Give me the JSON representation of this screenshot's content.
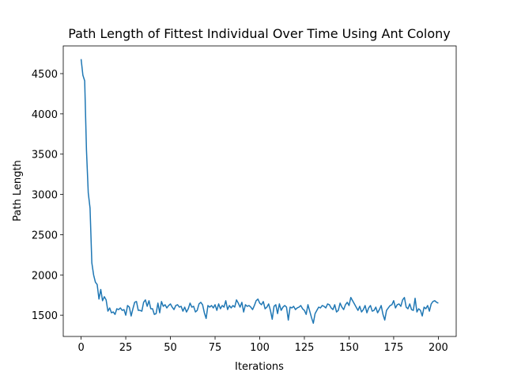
{
  "chart_data": {
    "type": "line",
    "title": "Path Length of Fittest Individual Over Time Using Ant Colony",
    "x_label": "Iterations",
    "y_label": "Path Length",
    "x": [
      0,
      1,
      2,
      3,
      4,
      5,
      6,
      7,
      8,
      9,
      10,
      11,
      12,
      13,
      14,
      15,
      16,
      17,
      18,
      19,
      20,
      21,
      22,
      23,
      24,
      25,
      26,
      27,
      28,
      29,
      30,
      31,
      32,
      33,
      34,
      35,
      36,
      37,
      38,
      39,
      40,
      41,
      42,
      43,
      44,
      45,
      46,
      47,
      48,
      49,
      50,
      51,
      52,
      53,
      54,
      55,
      56,
      57,
      58,
      59,
      60,
      61,
      62,
      63,
      64,
      65,
      66,
      67,
      68,
      69,
      70,
      71,
      72,
      73,
      74,
      75,
      76,
      77,
      78,
      79,
      80,
      81,
      82,
      83,
      84,
      85,
      86,
      87,
      88,
      89,
      90,
      91,
      92,
      93,
      94,
      95,
      96,
      97,
      98,
      99,
      100,
      101,
      102,
      103,
      104,
      105,
      106,
      107,
      108,
      109,
      110,
      111,
      112,
      113,
      114,
      115,
      116,
      117,
      118,
      119,
      120,
      121,
      122,
      123,
      124,
      125,
      126,
      127,
      128,
      129,
      130,
      131,
      132,
      133,
      134,
      135,
      136,
      137,
      138,
      139,
      140,
      141,
      142,
      143,
      144,
      145,
      146,
      147,
      148,
      149,
      150,
      151,
      152,
      153,
      154,
      155,
      156,
      157,
      158,
      159,
      160,
      161,
      162,
      163,
      164,
      165,
      166,
      167,
      168,
      169,
      170,
      171,
      172,
      173,
      174,
      175,
      176,
      177,
      178,
      179,
      180,
      181,
      182,
      183,
      184,
      185,
      186,
      187,
      188,
      189,
      190,
      191,
      192,
      193,
      194,
      195,
      196,
      197,
      198,
      199,
      200
    ],
    "series": [
      {
        "color": "#1f77b4",
        "values": [
          4680,
          4480,
          4410,
          3550,
          3020,
          2830,
          2150,
          2000,
          1910,
          1880,
          1700,
          1820,
          1680,
          1730,
          1690,
          1550,
          1590,
          1530,
          1540,
          1510,
          1580,
          1570,
          1590,
          1560,
          1570,
          1500,
          1620,
          1600,
          1490,
          1580,
          1660,
          1670,
          1560,
          1560,
          1550,
          1660,
          1690,
          1610,
          1680,
          1580,
          1580,
          1510,
          1520,
          1650,
          1530,
          1670,
          1610,
          1630,
          1590,
          1620,
          1640,
          1600,
          1570,
          1620,
          1630,
          1600,
          1610,
          1550,
          1600,
          1540,
          1580,
          1650,
          1600,
          1610,
          1540,
          1560,
          1640,
          1660,
          1630,
          1530,
          1460,
          1620,
          1600,
          1620,
          1590,
          1630,
          1560,
          1640,
          1580,
          1620,
          1600,
          1680,
          1570,
          1620,
          1590,
          1620,
          1600,
          1690,
          1650,
          1600,
          1660,
          1540,
          1630,
          1610,
          1620,
          1600,
          1570,
          1620,
          1680,
          1700,
          1650,
          1630,
          1670,
          1580,
          1600,
          1640,
          1560,
          1450,
          1610,
          1630,
          1520,
          1640,
          1560,
          1600,
          1620,
          1600,
          1440,
          1600,
          1590,
          1610,
          1570,
          1590,
          1600,
          1620,
          1580,
          1560,
          1510,
          1630,
          1550,
          1470,
          1400,
          1520,
          1560,
          1600,
          1590,
          1620,
          1610,
          1590,
          1640,
          1630,
          1590,
          1570,
          1630,
          1540,
          1560,
          1650,
          1600,
          1570,
          1630,
          1660,
          1620,
          1720,
          1680,
          1640,
          1600,
          1560,
          1610,
          1540,
          1570,
          1620,
          1530,
          1590,
          1620,
          1550,
          1560,
          1600,
          1530,
          1570,
          1620,
          1510,
          1440,
          1560,
          1590,
          1620,
          1630,
          1680,
          1590,
          1630,
          1640,
          1610,
          1690,
          1720,
          1600,
          1580,
          1640,
          1570,
          1560,
          1710,
          1540,
          1580,
          1560,
          1490,
          1600,
          1580,
          1620,
          1550,
          1640,
          1670,
          1680,
          1660,
          1650
        ]
      }
    ],
    "xlim": [
      -10,
      210
    ],
    "ylim": [
      1236,
      4844
    ],
    "xticks": [
      0,
      25,
      50,
      75,
      100,
      125,
      150,
      175,
      200
    ],
    "yticks": [
      1500,
      2000,
      2500,
      3000,
      3500,
      4000,
      4500
    ]
  }
}
